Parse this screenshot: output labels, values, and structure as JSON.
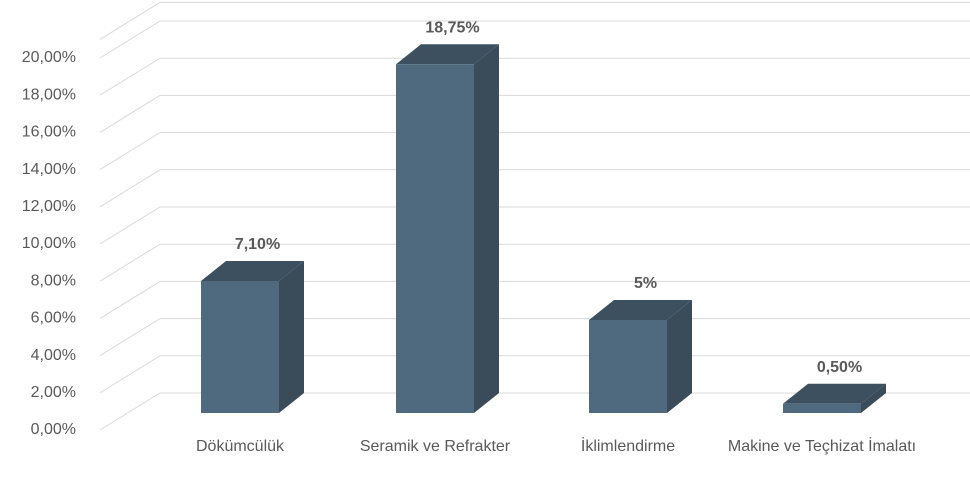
{
  "chart_data": {
    "type": "bar3d",
    "categories": [
      "Dökümcülük",
      "Seramik ve Refrakter",
      "İklimlendirme",
      "Makine ve Teçhizat İmalatı"
    ],
    "values": [
      7.1,
      18.75,
      5,
      0.5
    ],
    "value_labels": [
      "7,10%",
      "18,75%",
      "5%",
      "0,50%"
    ],
    "color": "#4f6a7f",
    "ylim": [
      0,
      21
    ],
    "yticks": [
      {
        "value": 0,
        "label": "0,00%"
      },
      {
        "value": 2,
        "label": "2,00%"
      },
      {
        "value": 4,
        "label": "4,00%"
      },
      {
        "value": 6,
        "label": "6,00%"
      },
      {
        "value": 8,
        "label": "8,00%"
      },
      {
        "value": 10,
        "label": "10,00%"
      },
      {
        "value": 12,
        "label": "12,00%"
      },
      {
        "value": 14,
        "label": "14,00%"
      },
      {
        "value": 16,
        "label": "16,00%"
      },
      {
        "value": 18,
        "label": "18,00%"
      },
      {
        "value": 20,
        "label": "20,00%"
      }
    ],
    "grid": true
  }
}
